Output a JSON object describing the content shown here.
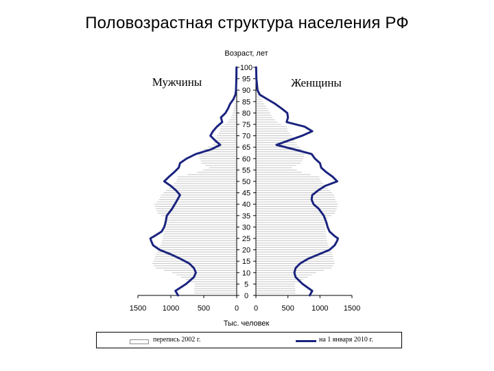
{
  "page": {
    "title": "Половозрастная структура населения РФ"
  },
  "chart_data": {
    "type": "population_pyramid",
    "y_axis_label": "Возраст, лет",
    "x_axis_label": "Тыс. человек",
    "left_panel_label": "Мужчины",
    "right_panel_label": "Женщины",
    "age_ticks": [
      0,
      5,
      10,
      15,
      20,
      25,
      30,
      35,
      40,
      45,
      50,
      55,
      60,
      65,
      70,
      75,
      80,
      85,
      90,
      95,
      100
    ],
    "male_xlim": [
      1500,
      0
    ],
    "female_xlim": [
      0,
      1500
    ],
    "male_x_ticks": [
      "1500",
      "1000",
      "500",
      "0"
    ],
    "female_x_ticks": [
      "0",
      "500",
      "1000",
      "1500"
    ],
    "legend": [
      {
        "name": "перепись 2002 г.",
        "style": "bars"
      },
      {
        "name": "на 1 января 2010 г.",
        "style": "line"
      }
    ],
    "colors": {
      "line": "#1a237e",
      "bars": "#8c8c8c"
    },
    "series": [
      {
        "name": "на 1 января 2010 г.",
        "sex": "male",
        "points": [
          [
            0,
            890
          ],
          [
            2,
            930
          ],
          [
            5,
            770
          ],
          [
            8,
            650
          ],
          [
            10,
            620
          ],
          [
            12,
            650
          ],
          [
            14,
            720
          ],
          [
            16,
            850
          ],
          [
            18,
            1000
          ],
          [
            20,
            1170
          ],
          [
            22,
            1270
          ],
          [
            24,
            1300
          ],
          [
            25,
            1310
          ],
          [
            26,
            1250
          ],
          [
            28,
            1140
          ],
          [
            30,
            1100
          ],
          [
            32,
            1080
          ],
          [
            35,
            1060
          ],
          [
            38,
            980
          ],
          [
            40,
            940
          ],
          [
            42,
            900
          ],
          [
            44,
            860
          ],
          [
            46,
            920
          ],
          [
            48,
            1000
          ],
          [
            50,
            1100
          ],
          [
            52,
            1030
          ],
          [
            54,
            950
          ],
          [
            56,
            880
          ],
          [
            58,
            860
          ],
          [
            60,
            760
          ],
          [
            62,
            620
          ],
          [
            64,
            390
          ],
          [
            66,
            250
          ],
          [
            68,
            330
          ],
          [
            70,
            400
          ],
          [
            72,
            360
          ],
          [
            74,
            300
          ],
          [
            76,
            220
          ],
          [
            78,
            240
          ],
          [
            80,
            170
          ],
          [
            82,
            130
          ],
          [
            84,
            100
          ],
          [
            86,
            50
          ],
          [
            88,
            20
          ],
          [
            90,
            10
          ],
          [
            95,
            5
          ],
          [
            100,
            3
          ]
        ]
      },
      {
        "name": "на 1 января 2010 г.",
        "sex": "female",
        "points": [
          [
            0,
            840
          ],
          [
            2,
            880
          ],
          [
            5,
            730
          ],
          [
            8,
            620
          ],
          [
            10,
            600
          ],
          [
            12,
            620
          ],
          [
            14,
            690
          ],
          [
            16,
            810
          ],
          [
            18,
            980
          ],
          [
            20,
            1150
          ],
          [
            22,
            1230
          ],
          [
            24,
            1270
          ],
          [
            25,
            1280
          ],
          [
            26,
            1230
          ],
          [
            28,
            1150
          ],
          [
            30,
            1120
          ],
          [
            32,
            1100
          ],
          [
            35,
            1060
          ],
          [
            38,
            980
          ],
          [
            40,
            900
          ],
          [
            42,
            870
          ],
          [
            44,
            880
          ],
          [
            46,
            970
          ],
          [
            48,
            1080
          ],
          [
            50,
            1270
          ],
          [
            52,
            1200
          ],
          [
            54,
            1100
          ],
          [
            56,
            1020
          ],
          [
            58,
            1000
          ],
          [
            60,
            920
          ],
          [
            62,
            870
          ],
          [
            64,
            600
          ],
          [
            66,
            320
          ],
          [
            68,
            520
          ],
          [
            70,
            720
          ],
          [
            72,
            880
          ],
          [
            74,
            760
          ],
          [
            76,
            480
          ],
          [
            78,
            500
          ],
          [
            80,
            490
          ],
          [
            82,
            400
          ],
          [
            84,
            300
          ],
          [
            86,
            180
          ],
          [
            88,
            60
          ],
          [
            90,
            25
          ],
          [
            95,
            8
          ],
          [
            100,
            3
          ]
        ]
      },
      {
        "name": "перепись 2002 г.",
        "sex": "male",
        "points": [
          [
            0,
            650
          ],
          [
            5,
            640
          ],
          [
            10,
            980
          ],
          [
            12,
            1230
          ],
          [
            14,
            1280
          ],
          [
            16,
            1250
          ],
          [
            18,
            1230
          ],
          [
            20,
            1200
          ],
          [
            22,
            1160
          ],
          [
            24,
            1130
          ],
          [
            26,
            1120
          ],
          [
            28,
            1100
          ],
          [
            30,
            1080
          ],
          [
            32,
            1060
          ],
          [
            34,
            1100
          ],
          [
            36,
            1200
          ],
          [
            38,
            1230
          ],
          [
            40,
            1250
          ],
          [
            42,
            1180
          ],
          [
            44,
            1150
          ],
          [
            46,
            1070
          ],
          [
            48,
            980
          ],
          [
            50,
            920
          ],
          [
            52,
            900
          ],
          [
            54,
            600
          ],
          [
            56,
            420
          ],
          [
            58,
            530
          ],
          [
            60,
            560
          ],
          [
            62,
            580
          ],
          [
            64,
            500
          ],
          [
            66,
            370
          ],
          [
            68,
            320
          ],
          [
            70,
            300
          ],
          [
            72,
            260
          ],
          [
            74,
            240
          ],
          [
            76,
            140
          ],
          [
            78,
            90
          ],
          [
            80,
            60
          ],
          [
            82,
            50
          ],
          [
            84,
            30
          ],
          [
            86,
            15
          ],
          [
            88,
            8
          ],
          [
            90,
            5
          ],
          [
            95,
            3
          ],
          [
            100,
            1
          ]
        ]
      },
      {
        "name": "перепись 2002 г.",
        "sex": "female",
        "points": [
          [
            0,
            620
          ],
          [
            5,
            610
          ],
          [
            10,
            940
          ],
          [
            12,
            1180
          ],
          [
            14,
            1230
          ],
          [
            16,
            1210
          ],
          [
            18,
            1200
          ],
          [
            20,
            1170
          ],
          [
            22,
            1130
          ],
          [
            24,
            1110
          ],
          [
            26,
            1100
          ],
          [
            28,
            1090
          ],
          [
            30,
            1080
          ],
          [
            32,
            1080
          ],
          [
            34,
            1130
          ],
          [
            36,
            1230
          ],
          [
            38,
            1260
          ],
          [
            40,
            1280
          ],
          [
            42,
            1240
          ],
          [
            44,
            1220
          ],
          [
            46,
            1160
          ],
          [
            48,
            1080
          ],
          [
            50,
            1020
          ],
          [
            52,
            990
          ],
          [
            54,
            720
          ],
          [
            56,
            560
          ],
          [
            58,
            700
          ],
          [
            60,
            740
          ],
          [
            62,
            760
          ],
          [
            64,
            720
          ],
          [
            66,
            640
          ],
          [
            68,
            600
          ],
          [
            70,
            560
          ],
          [
            72,
            500
          ],
          [
            74,
            480
          ],
          [
            76,
            330
          ],
          [
            78,
            260
          ],
          [
            80,
            220
          ],
          [
            82,
            180
          ],
          [
            84,
            130
          ],
          [
            86,
            90
          ],
          [
            88,
            50
          ],
          [
            90,
            30
          ],
          [
            95,
            10
          ],
          [
            100,
            3
          ]
        ]
      }
    ]
  }
}
